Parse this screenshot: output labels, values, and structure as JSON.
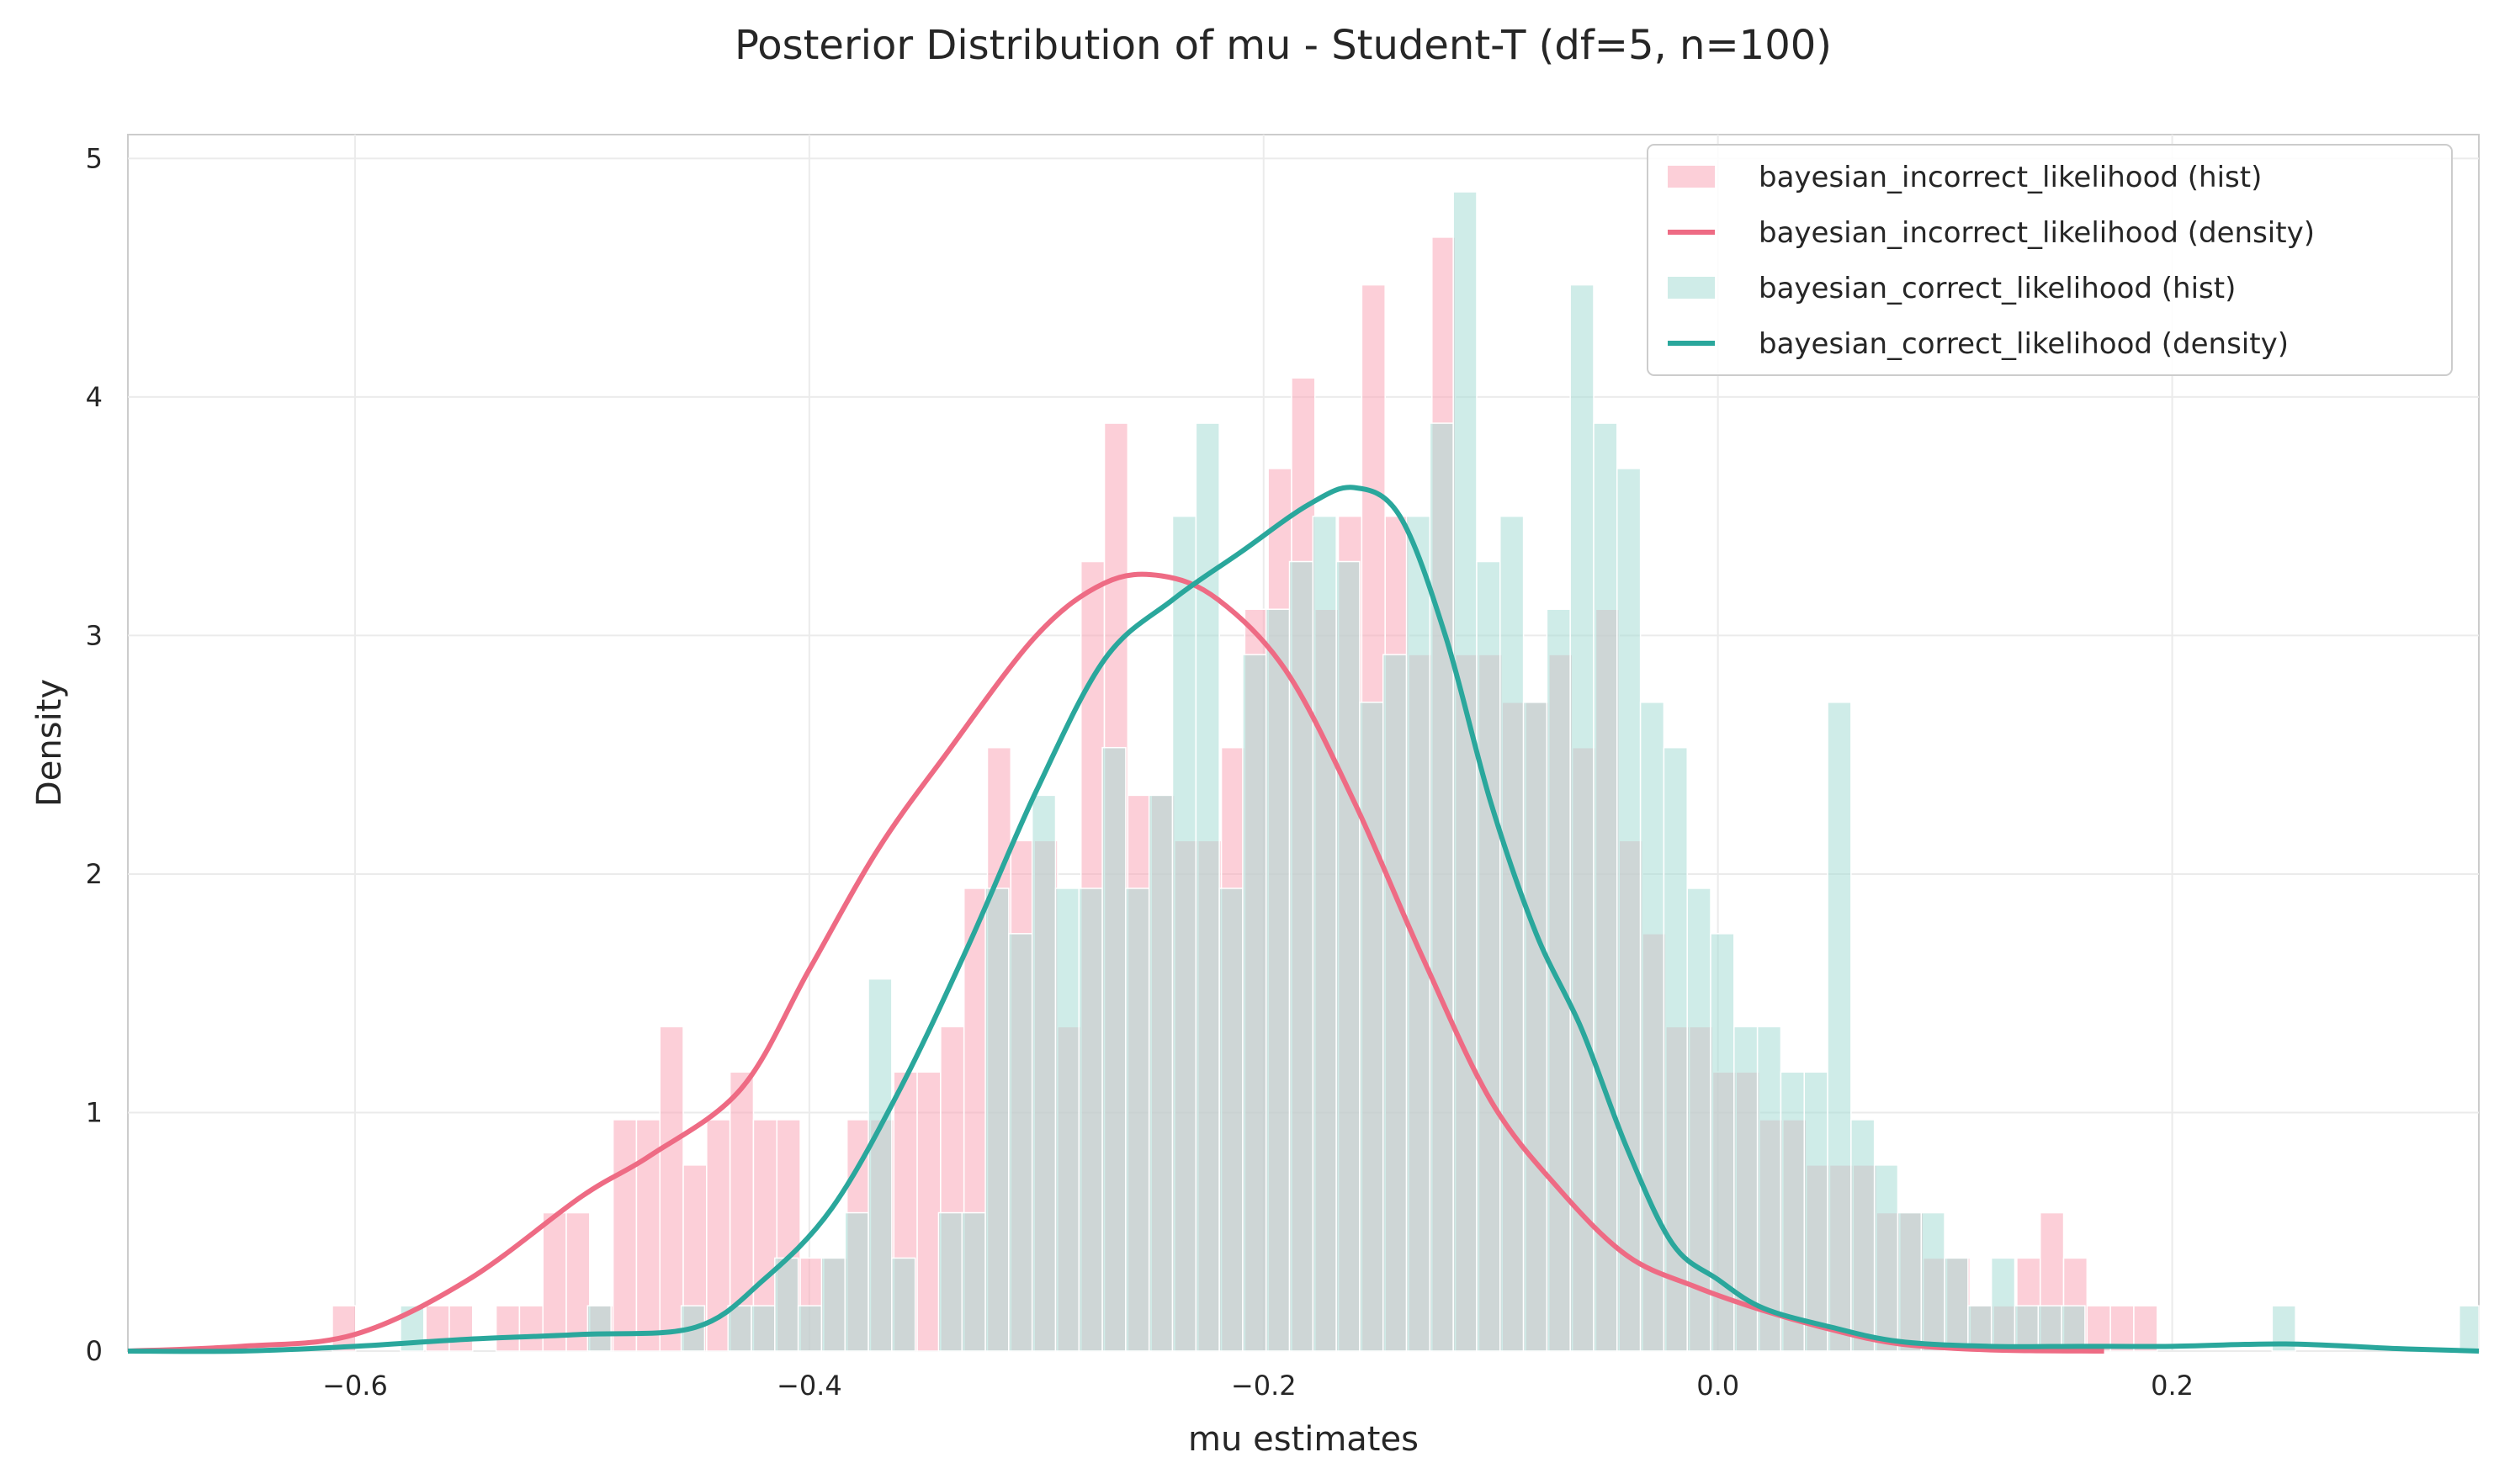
{
  "chart_data": {
    "type": "histogram",
    "title": "Posterior Distribution of mu - Student-T (df=5, n=100)",
    "xlabel": "mu estimates",
    "ylabel": "Density",
    "xlim": [
      -0.7,
      0.335
    ],
    "ylim": [
      0,
      5.1
    ],
    "xticks": [
      -0.6,
      -0.4,
      -0.2,
      0.0,
      0.2
    ],
    "xtick_labels": [
      "−0.6",
      "−0.4",
      "−0.2",
      "0.0",
      "0.2"
    ],
    "yticks": [
      0,
      1,
      2,
      3,
      4,
      5
    ],
    "ytick_labels": [
      "0",
      "1",
      "2",
      "3",
      "4",
      "5"
    ],
    "grid": true,
    "legend_position": "top-right",
    "series": [
      {
        "name": "bayesian_incorrect_likelihood (hist)",
        "kind": "hist",
        "color": "#f9a8b8",
        "bin_start": -0.61,
        "bin_width": 0.0103,
        "values": [
          0.19,
          0,
          0,
          0,
          0.19,
          0.19,
          0,
          0.19,
          0.19,
          0.58,
          0.58,
          0.19,
          0.97,
          0.97,
          1.36,
          0.78,
          0.97,
          1.17,
          0.97,
          0.97,
          0.39,
          0.39,
          0.97,
          0.97,
          1.17,
          1.17,
          1.36,
          1.94,
          2.53,
          2.14,
          2.14,
          1.36,
          3.31,
          3.89,
          2.33,
          2.33,
          2.14,
          2.14,
          2.53,
          3.11,
          3.7,
          4.08,
          3.11,
          3.5,
          4.47,
          3.5,
          2.92,
          4.67,
          2.92,
          2.92,
          2.72,
          2.72,
          2.92,
          2.53,
          3.11,
          2.14,
          1.75,
          1.36,
          1.36,
          1.17,
          1.17,
          0.97,
          0.97,
          0.78,
          0.78,
          0.78,
          0.58,
          0.58,
          0.39,
          0.39,
          0.19,
          0.19,
          0.39,
          0.58,
          0.39,
          0.19,
          0.19,
          0.19
        ]
      },
      {
        "name": "bayesian_incorrect_likelihood (density)",
        "kind": "line",
        "color": "#ee6b84",
        "x": [
          -0.7,
          -0.65,
          -0.6,
          -0.55,
          -0.5,
          -0.47,
          -0.43,
          -0.4,
          -0.37,
          -0.34,
          -0.3,
          -0.27,
          -0.245,
          -0.22,
          -0.19,
          -0.16,
          -0.13,
          -0.1,
          -0.07,
          -0.04,
          -0.01,
          0.02,
          0.05,
          0.08,
          0.12,
          0.17
        ],
        "y": [
          0.0,
          0.02,
          0.07,
          0.3,
          0.65,
          0.82,
          1.1,
          1.6,
          2.1,
          2.5,
          3.0,
          3.22,
          3.25,
          3.15,
          2.85,
          2.3,
          1.65,
          1.05,
          0.68,
          0.4,
          0.27,
          0.17,
          0.09,
          0.03,
          0.005,
          0.0
        ]
      },
      {
        "name": "bayesian_correct_likelihood (hist)",
        "kind": "hist",
        "color": "#a8dcd6",
        "bin_start": -0.58,
        "bin_width": 0.0103,
        "values": [
          0.19,
          0,
          0,
          0,
          0,
          0,
          0,
          0,
          0.19,
          0,
          0,
          0,
          0.19,
          0,
          0.19,
          0.19,
          0.39,
          0.19,
          0.39,
          0.58,
          1.56,
          0.39,
          0,
          0.58,
          0.58,
          1.94,
          1.75,
          2.33,
          1.94,
          1.94,
          2.53,
          1.94,
          2.33,
          3.5,
          3.89,
          1.94,
          2.92,
          3.11,
          3.31,
          3.5,
          3.31,
          2.72,
          2.92,
          3.5,
          3.89,
          4.86,
          3.31,
          3.5,
          2.72,
          3.11,
          4.47,
          3.89,
          3.7,
          2.72,
          2.53,
          1.94,
          1.75,
          1.36,
          1.36,
          1.17,
          1.17,
          2.72,
          0.97,
          0.78,
          0.58,
          0.58,
          0.39,
          0.19,
          0.39,
          0.19,
          0.19,
          0.19,
          0,
          0,
          0,
          0,
          0,
          0,
          0,
          0,
          0.19,
          0,
          0,
          0,
          0,
          0,
          0,
          0,
          0.19
        ]
      },
      {
        "name": "bayesian_correct_likelihood (density)",
        "kind": "line",
        "color": "#2aa79c",
        "x": [
          -0.7,
          -0.65,
          -0.6,
          -0.55,
          -0.5,
          -0.45,
          -0.42,
          -0.39,
          -0.36,
          -0.33,
          -0.3,
          -0.27,
          -0.24,
          -0.21,
          -0.18,
          -0.16,
          -0.14,
          -0.12,
          -0.1,
          -0.08,
          -0.06,
          -0.04,
          -0.02,
          0.0,
          0.02,
          0.05,
          0.08,
          0.12,
          0.16,
          0.2,
          0.25,
          0.3,
          0.335
        ],
        "y": [
          0.0,
          0.0,
          0.02,
          0.05,
          0.07,
          0.1,
          0.3,
          0.6,
          1.1,
          1.7,
          2.35,
          2.9,
          3.15,
          3.35,
          3.55,
          3.62,
          3.5,
          3.0,
          2.3,
          1.75,
          1.35,
          0.85,
          0.45,
          0.3,
          0.18,
          0.1,
          0.04,
          0.02,
          0.02,
          0.02,
          0.03,
          0.01,
          0.0
        ]
      }
    ]
  }
}
